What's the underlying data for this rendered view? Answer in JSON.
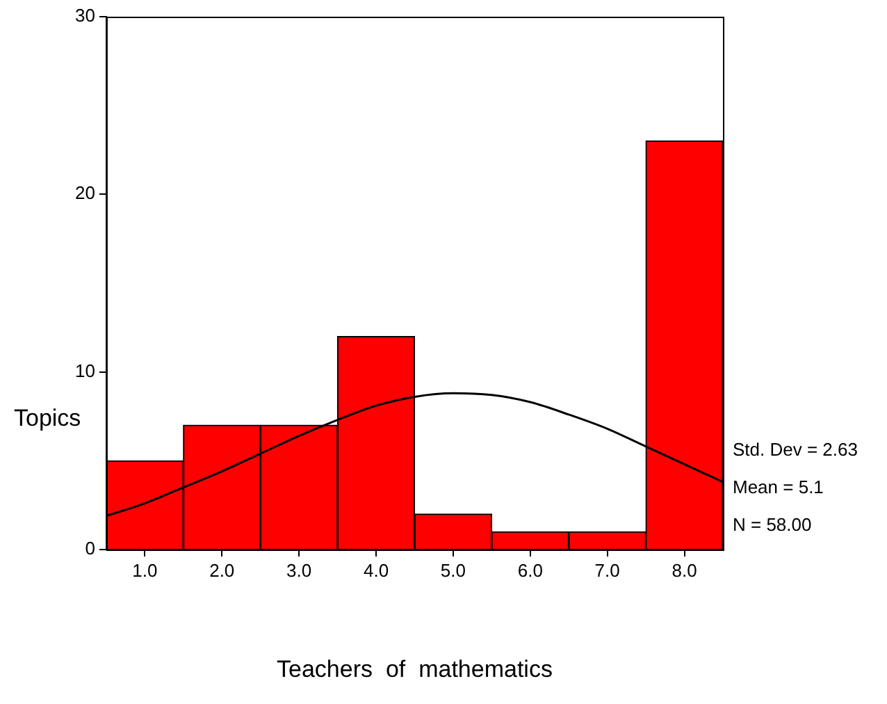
{
  "chart_data": {
    "type": "histogram",
    "xlabel": "Teachers  of  mathematics",
    "ylabel": "Topics",
    "bins": [
      0.5,
      1.5,
      2.5,
      3.5,
      4.5,
      5.5,
      6.5,
      7.5,
      8.5
    ],
    "values": [
      5,
      7,
      7,
      12,
      2,
      1,
      1,
      23
    ],
    "color": "#ff0000",
    "xlim": [
      0.5,
      8.5
    ],
    "xticks": [
      {
        "value": 1,
        "label": "1.0"
      },
      {
        "value": 2,
        "label": "2.0"
      },
      {
        "value": 3,
        "label": "3.0"
      },
      {
        "value": 4,
        "label": "4.0"
      },
      {
        "value": 5,
        "label": "5.0"
      },
      {
        "value": 6,
        "label": "6.0"
      },
      {
        "value": 7,
        "label": "7.0"
      },
      {
        "value": 8,
        "label": "8.0"
      }
    ],
    "ylim": [
      0,
      30
    ],
    "yticks": [
      0,
      10,
      20,
      30
    ],
    "series": [
      {
        "type": "line",
        "color": "#000000",
        "x": [
          0.5,
          1,
          1.5,
          2,
          2.5,
          3,
          3.5,
          4,
          4.5,
          5,
          5.5,
          6,
          6.5,
          7,
          7.5,
          8,
          8.5
        ],
        "values": [
          1.9,
          2.6,
          3.5,
          4.4,
          5.4,
          6.4,
          7.3,
          8.1,
          8.6,
          8.8,
          8.7,
          8.3,
          7.6,
          6.8,
          5.8,
          4.8,
          3.8
        ]
      }
    ],
    "annotations": [
      "Std. Dev = 2.63",
      "Mean = 5.1",
      "N = 58.00"
    ],
    "grid": false,
    "legend": false,
    "marker": "none"
  }
}
